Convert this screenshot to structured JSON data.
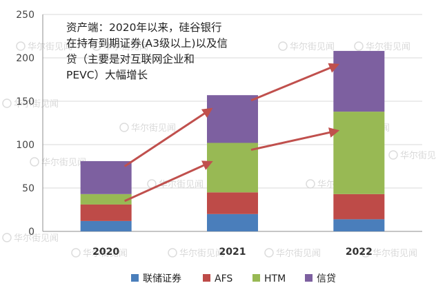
{
  "chart_data": {
    "type": "bar",
    "stacked": true,
    "categories": [
      "2020",
      "2021",
      "2022"
    ],
    "series": [
      {
        "name": "联储证券",
        "values": [
          12,
          20,
          14
        ],
        "color": "#4A7EBB"
      },
      {
        "name": "AFS",
        "values": [
          19,
          25,
          29
        ],
        "color": "#BE4B48"
      },
      {
        "name": "HTM",
        "values": [
          12,
          57,
          95
        ],
        "color": "#98B954"
      },
      {
        "name": "信贷",
        "values": [
          38,
          55,
          70
        ],
        "color": "#7D60A0"
      }
    ],
    "ylim": [
      0,
      250
    ],
    "yticks": [
      "0",
      "50",
      "100",
      "150",
      "200",
      "250"
    ],
    "grid": true,
    "legend": "bottom",
    "annotation": {
      "lines": [
        "资产端：2020年以来，硅谷银行",
        "在持有到期证券(A3级以上)以及信",
        "贷（主要是对互联网企业和",
        "PEVC）大幅增长"
      ]
    },
    "arrow_color": "#C0504D"
  },
  "watermark": {
    "text": "华尔街见闻",
    "icon": "watermark-logo-icon"
  }
}
